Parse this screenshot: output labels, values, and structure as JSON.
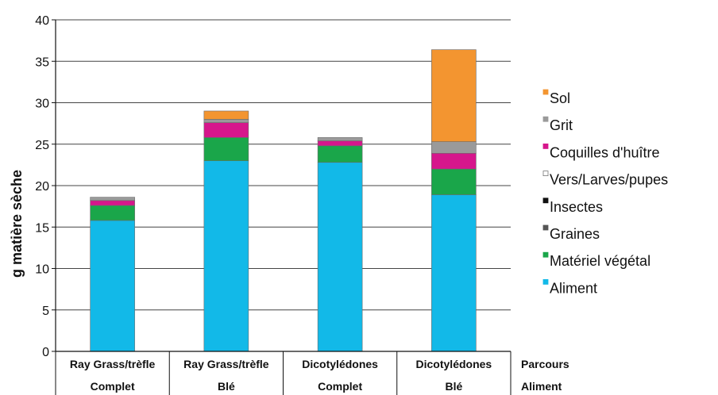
{
  "chart_data": {
    "type": "bar",
    "stacked": true,
    "ylabel": "g matière sèche",
    "ylim": [
      0,
      40
    ],
    "yticks": [
      0,
      5,
      10,
      15,
      20,
      25,
      30,
      35,
      40
    ],
    "grid": true,
    "legend_position": "right",
    "category_levels": [
      {
        "name": "Parcours",
        "labels": [
          "Ray Grass/trèfle",
          "Ray Grass/trèfle",
          "Dicotylédones",
          "Dicotylédones"
        ]
      },
      {
        "name": "Aliment",
        "labels": [
          "Complet",
          "Blé",
          "Complet",
          "Blé"
        ]
      }
    ],
    "series": [
      {
        "name": "Aliment",
        "color": "#12b9e8",
        "values": [
          15.8,
          23.0,
          22.8,
          18.9
        ]
      },
      {
        "name": "Matériel végétal",
        "color": "#1aa64a",
        "values": [
          1.8,
          2.8,
          2.0,
          3.1
        ]
      },
      {
        "name": "Graines",
        "color": "#555555",
        "values": [
          0,
          0,
          0,
          0
        ]
      },
      {
        "name": "Insectes",
        "color": "#111111",
        "values": [
          0,
          0,
          0,
          0
        ]
      },
      {
        "name": "Vers/Larves/pupes",
        "color": "#ffffff",
        "values": [
          0,
          0,
          0,
          0
        ]
      },
      {
        "name": "Coquilles d'huître",
        "color": "#d6168c",
        "values": [
          0.6,
          1.8,
          0.6,
          1.9
        ]
      },
      {
        "name": "Grit",
        "color": "#9a9a9a",
        "values": [
          0.4,
          0.4,
          0.4,
          1.4
        ]
      },
      {
        "name": "Sol",
        "color": "#f39530",
        "values": [
          0,
          1.0,
          0,
          11.1
        ]
      }
    ]
  }
}
